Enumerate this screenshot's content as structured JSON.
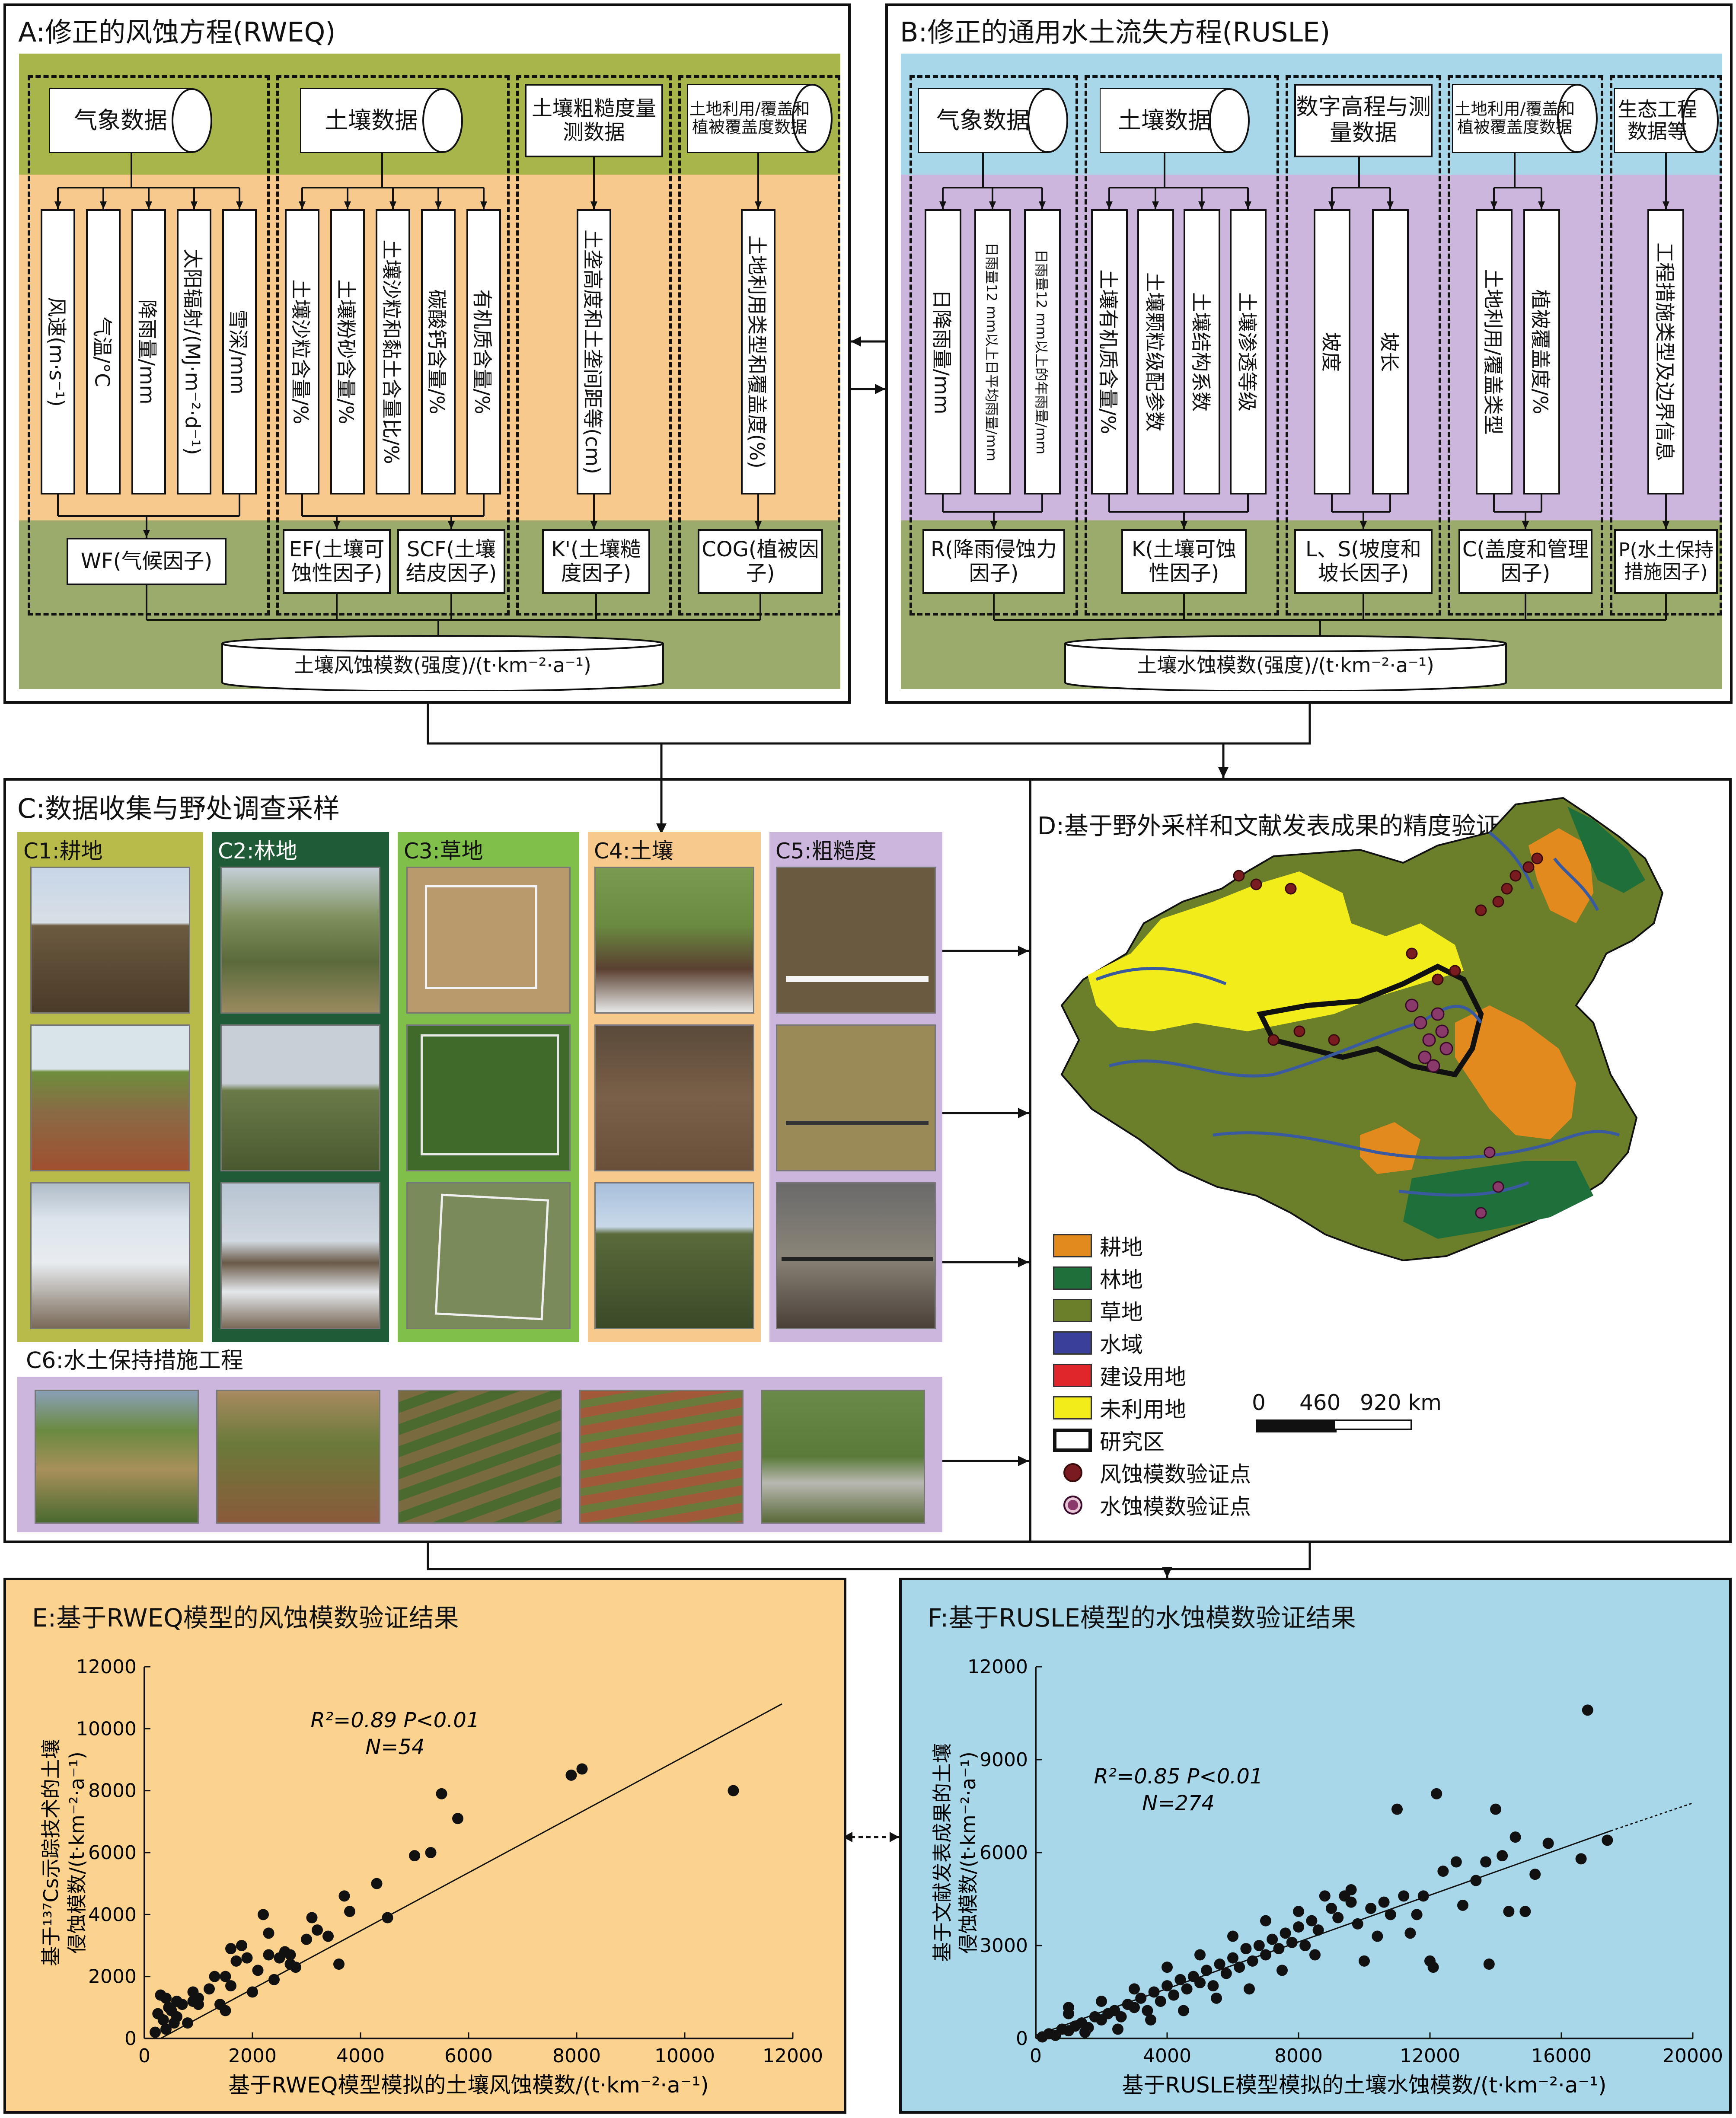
{
  "panelA": {
    "title": "A:修正的风蚀方程(RWEQ)",
    "groups": [
      {
        "source": "气象数据",
        "vars": [
          "风速(m·s⁻¹)",
          "气温/°C",
          "降雨量/mm",
          "太阳辐射/(MJ·m⁻²·d⁻¹)",
          "雪深/mm"
        ]
      },
      {
        "source": "土壤数据",
        "vars": [
          "土壤沙粒含量/%",
          "土壤粉砂含量/%",
          "土壤沙粒和黏土含量比/%",
          "碳酸钙含量/%",
          "有机质含量/%"
        ]
      },
      {
        "source": "土壤粗糙度量测数据",
        "vars": [
          "土垄高度和土垄间距等(cm)"
        ]
      },
      {
        "source": "土地利用/覆盖和植被覆盖度数据",
        "vars": [
          "土地利用类型和覆盖度(%)"
        ]
      }
    ],
    "factors": [
      "WF(气候因子)",
      "EF(土壤可蚀性因子)",
      "SCF(土壤结皮因子)",
      "K'(土壤糙度因子)",
      "COG(植被因子)"
    ],
    "result": "土壤风蚀模数(强度)/(t·km⁻²·a⁻¹)"
  },
  "panelB": {
    "title": "B:修正的通用水土流失方程(RUSLE)",
    "groups": [
      {
        "source": "气象数据",
        "vars": [
          "日降雨量/mm",
          "日雨量12 mm以上日平均雨量/mm",
          "日雨量12 mm以上的年雨量/mm"
        ]
      },
      {
        "source": "土壤数据",
        "vars": [
          "土壤有机质含量/%",
          "土壤颗粒级配参数",
          "土壤结构系数",
          "土壤渗透等级"
        ]
      },
      {
        "source": "数字高程与测量数据",
        "vars": [
          "坡度",
          "坡长"
        ]
      },
      {
        "source": "土地利用/覆盖和植被覆盖度数据",
        "vars": [
          "土地利用/覆盖类型",
          "植被覆盖度/%"
        ]
      },
      {
        "source": "生态工程数据等",
        "vars": [
          "工程措施类型及边界信息"
        ]
      }
    ],
    "factors": [
      "R(降雨侵蚀力因子)",
      "K(土壤可蚀性因子)",
      "L、S(坡度和坡长因子)",
      "C(盖度和管理因子)",
      "P(水土保持措施因子)"
    ],
    "result": "土壤水蚀模数(强度)/(t·km⁻²·a⁻¹)"
  },
  "panelC": {
    "title": "C:数据收集与野处调查采样",
    "subpanels": [
      "C1:耕地",
      "C2:林地",
      "C3:草地",
      "C4:土壤",
      "C5:粗糙度"
    ],
    "c6": "C6:水土保持措施工程"
  },
  "panelD": {
    "title": "D:基于野外采样和文献发表成果的精度验证",
    "legend": [
      {
        "label": "耕地",
        "color": "#e38a1e"
      },
      {
        "label": "林地",
        "color": "#1f6f3a"
      },
      {
        "label": "草地",
        "color": "#6b7f2a"
      },
      {
        "label": "水域",
        "color": "#3a3f9a"
      },
      {
        "label": "建设用地",
        "color": "#e0262a"
      },
      {
        "label": "未利用地",
        "color": "#f2ec1a"
      },
      {
        "label": "研究区",
        "color": "#ffffff"
      },
      {
        "label": "风蚀模数验证点",
        "color": "#7a1b20"
      },
      {
        "label": "水蚀模数验证点",
        "color": "#8a3a6a"
      }
    ],
    "scale": {
      "ticks": [
        "0",
        "460",
        "920 km"
      ]
    }
  },
  "chart_data": [
    {
      "type": "scatter",
      "title": "E:基于RWEQ模型的风蚀模数验证结果",
      "xlabel": "基于RWEQ模型模拟的土壤风蚀模数/(t·km⁻²·a⁻¹)",
      "ylabel_lines": [
        "基于¹³⁷Cs示踪技术的土壤",
        "侵蚀模数/(t·km⁻²·a⁻¹)"
      ],
      "xlim": [
        0,
        12000
      ],
      "ylim": [
        0,
        12000
      ],
      "xticks": [
        "0",
        "2000",
        "4000",
        "6000",
        "8000",
        "10000",
        "12000"
      ],
      "yticks": [
        "0",
        "2000",
        "4000",
        "6000",
        "8000",
        "10000",
        "12000"
      ],
      "annotation": [
        "R²=0.89  P<0.01",
        "N=54"
      ],
      "trend": [
        [
          300,
          0
        ],
        [
          11800,
          10800
        ]
      ],
      "points": [
        [
          200,
          200
        ],
        [
          250,
          800
        ],
        [
          300,
          1400
        ],
        [
          350,
          600
        ],
        [
          400,
          300
        ],
        [
          450,
          1000
        ],
        [
          500,
          900
        ],
        [
          550,
          500
        ],
        [
          600,
          1200
        ],
        [
          700,
          1100
        ],
        [
          800,
          500
        ],
        [
          900,
          1500
        ],
        [
          1000,
          1300
        ],
        [
          1200,
          1600
        ],
        [
          1300,
          2000
        ],
        [
          1400,
          1100
        ],
        [
          1500,
          900
        ],
        [
          1600,
          1700
        ],
        [
          1700,
          2500
        ],
        [
          1800,
          3000
        ],
        [
          1900,
          2600
        ],
        [
          2000,
          1500
        ],
        [
          2100,
          2200
        ],
        [
          2200,
          4000
        ],
        [
          2300,
          3400
        ],
        [
          2400,
          1900
        ],
        [
          2500,
          2600
        ],
        [
          2600,
          2800
        ],
        [
          2700,
          2700
        ],
        [
          2800,
          2300
        ],
        [
          3000,
          3200
        ],
        [
          3100,
          3900
        ],
        [
          3200,
          3500
        ],
        [
          3400,
          3300
        ],
        [
          3600,
          2400
        ],
        [
          3700,
          4600
        ],
        [
          3800,
          4100
        ],
        [
          4300,
          5000
        ],
        [
          4500,
          3900
        ],
        [
          5000,
          5900
        ],
        [
          5300,
          6000
        ],
        [
          5500,
          7900
        ],
        [
          5800,
          7100
        ],
        [
          7900,
          8500
        ],
        [
          8100,
          8700
        ],
        [
          10900,
          8000
        ],
        [
          2300,
          2700
        ],
        [
          1500,
          2000
        ],
        [
          900,
          1200
        ],
        [
          600,
          700
        ],
        [
          1000,
          1100
        ],
        [
          2700,
          2400
        ],
        [
          400,
          1300
        ],
        [
          1600,
          2900
        ]
      ]
    },
    {
      "type": "scatter",
      "title": "F:基于RUSLE模型的水蚀模数验证结果",
      "xlabel": "基于RUSLE模型模拟的土壤水蚀模数/(t·km⁻²·a⁻¹)",
      "ylabel_lines": [
        "基于文献发表成果的土壤",
        "侵蚀模数/(t·km⁻²·a⁻¹)"
      ],
      "xlim": [
        0,
        20000
      ],
      "ylim": [
        0,
        12000
      ],
      "xticks": [
        "0",
        "4000",
        "8000",
        "12000",
        "16000",
        "20000"
      ],
      "yticks": [
        "0",
        "3000",
        "6000",
        "9000",
        "12000"
      ],
      "annotation": [
        "R²=0.85  P<0.01",
        "N=274"
      ],
      "trend": [
        [
          0,
          100
        ],
        [
          17500,
          6700
        ]
      ],
      "trend_extension": [
        [
          17500,
          6700
        ],
        [
          20000,
          7600
        ]
      ],
      "points": [
        [
          200,
          50
        ],
        [
          400,
          150
        ],
        [
          600,
          100
        ],
        [
          800,
          300
        ],
        [
          1000,
          250
        ],
        [
          1200,
          400
        ],
        [
          1400,
          500
        ],
        [
          1600,
          350
        ],
        [
          1800,
          700
        ],
        [
          2000,
          600
        ],
        [
          2200,
          800
        ],
        [
          2400,
          900
        ],
        [
          2600,
          700
        ],
        [
          2800,
          1100
        ],
        [
          3000,
          1000
        ],
        [
          3200,
          1300
        ],
        [
          3400,
          900
        ],
        [
          3600,
          1500
        ],
        [
          3800,
          1200
        ],
        [
          4000,
          1700
        ],
        [
          4200,
          1400
        ],
        [
          4400,
          1900
        ],
        [
          4600,
          1600
        ],
        [
          4800,
          2000
        ],
        [
          5000,
          1800
        ],
        [
          5200,
          2200
        ],
        [
          5400,
          1700
        ],
        [
          5600,
          2400
        ],
        [
          5800,
          2100
        ],
        [
          6000,
          2600
        ],
        [
          6200,
          2300
        ],
        [
          6400,
          2900
        ],
        [
          6600,
          2500
        ],
        [
          6800,
          3000
        ],
        [
          7000,
          2700
        ],
        [
          7200,
          3200
        ],
        [
          7400,
          2900
        ],
        [
          7600,
          3400
        ],
        [
          7800,
          3100
        ],
        [
          8000,
          3600
        ],
        [
          8200,
          3000
        ],
        [
          8400,
          3800
        ],
        [
          8600,
          3500
        ],
        [
          8800,
          4600
        ],
        [
          9000,
          4200
        ],
        [
          9200,
          3900
        ],
        [
          9400,
          4600
        ],
        [
          9600,
          4400
        ],
        [
          9800,
          3700
        ],
        [
          10000,
          2500
        ],
        [
          10200,
          4200
        ],
        [
          10400,
          3300
        ],
        [
          10600,
          4400
        ],
        [
          10800,
          4000
        ],
        [
          11000,
          7400
        ],
        [
          11200,
          4600
        ],
        [
          11400,
          3400
        ],
        [
          11600,
          4000
        ],
        [
          11800,
          4600
        ],
        [
          12000,
          2500
        ],
        [
          12200,
          7900
        ],
        [
          12400,
          5400
        ],
        [
          12800,
          5700
        ],
        [
          13000,
          4300
        ],
        [
          13400,
          5100
        ],
        [
          13700,
          5700
        ],
        [
          14000,
          7400
        ],
        [
          14200,
          5900
        ],
        [
          14400,
          4100
        ],
        [
          14600,
          6500
        ],
        [
          14900,
          4100
        ],
        [
          15200,
          5300
        ],
        [
          15600,
          6300
        ],
        [
          16600,
          5800
        ],
        [
          16800,
          10600
        ],
        [
          17400,
          6400
        ],
        [
          13800,
          2400
        ],
        [
          12100,
          2300
        ],
        [
          9600,
          4800
        ],
        [
          1000,
          800
        ],
        [
          1500,
          200
        ],
        [
          2500,
          300
        ],
        [
          3500,
          600
        ],
        [
          4500,
          900
        ],
        [
          5500,
          1300
        ],
        [
          6500,
          1600
        ],
        [
          7500,
          2200
        ],
        [
          8500,
          2700
        ],
        [
          3000,
          1600
        ],
        [
          4000,
          2300
        ],
        [
          5000,
          2700
        ],
        [
          6000,
          3300
        ],
        [
          7000,
          3800
        ],
        [
          8000,
          4100
        ],
        [
          2000,
          1200
        ],
        [
          1000,
          1000
        ]
      ]
    }
  ]
}
